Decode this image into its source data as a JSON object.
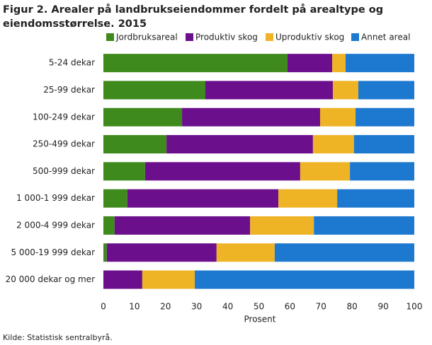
{
  "chart_data": {
    "type": "stacked-bar-horizontal",
    "title": "Figur 2. Arealer på landbrukseiendommer fordelt på arealtype og eiendomsstørrelse. 2015",
    "categories": [
      "5-24 dekar",
      "25-99 dekar",
      "100-249 dekar",
      "250-499 dekar",
      "500-999 dekar",
      "1 000-1 999 dekar",
      "2 000-4 999 dekar",
      "5 000-19 999 dekar",
      "20 000 dekar og mer"
    ],
    "series": [
      {
        "name": "Jordbruksareal",
        "color": "#3f8a1c",
        "values": [
          59.2,
          32.8,
          25.3,
          20.3,
          13.4,
          7.7,
          3.6,
          1.1,
          0
        ]
      },
      {
        "name": "Produktiv skog",
        "color": "#6b0f8c",
        "values": [
          14.4,
          41.0,
          44.4,
          47.1,
          49.9,
          48.6,
          43.6,
          35.3,
          12.5
        ]
      },
      {
        "name": "Uproduktiv skog",
        "color": "#efb326",
        "values": [
          4.3,
          8.2,
          11.4,
          13.2,
          16.0,
          18.9,
          20.5,
          18.7,
          16.9
        ]
      },
      {
        "name": "Annet areal",
        "color": "#1d78d0",
        "values": [
          22.1,
          18.0,
          18.9,
          19.4,
          20.7,
          24.8,
          32.3,
          44.9,
          70.6
        ]
      }
    ],
    "xlim": [
      0,
      100
    ],
    "xticks": [
      0,
      10,
      20,
      30,
      40,
      50,
      60,
      70,
      80,
      90,
      100
    ],
    "xlabel": "Prosent",
    "source": "Kilde: Statistisk sentralbyrå.",
    "grid": false
  }
}
